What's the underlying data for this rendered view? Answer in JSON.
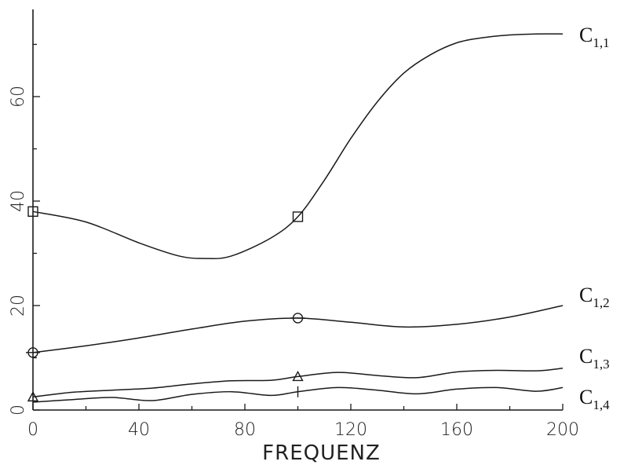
{
  "chart_data": {
    "type": "line",
    "xlabel": "FREQUENZ",
    "ylabel": "",
    "xlim": [
      0,
      200
    ],
    "ylim": [
      0,
      75
    ],
    "xticks": [
      0,
      40,
      80,
      120,
      160,
      200
    ],
    "xtick_labels": [
      "0",
      "40",
      "80",
      "120",
      "160",
      "200"
    ],
    "yticks": [
      0,
      20,
      40,
      60
    ],
    "ytick_labels": [
      "0",
      "20",
      "40",
      "60"
    ],
    "grid": false,
    "legend": "direct labels at right end of each line",
    "series": [
      {
        "name": "C1,1",
        "label_main": "C",
        "label_sub": "1,1",
        "marker": "square",
        "marker_x": [
          0,
          100
        ],
        "x": [
          0,
          20,
          40,
          55,
          65,
          75,
          90,
          100,
          110,
          120,
          130,
          140,
          150,
          160,
          170,
          180,
          190,
          200
        ],
        "y": [
          38,
          36,
          32,
          29.5,
          29,
          29.5,
          33,
          37,
          44,
          52,
          59,
          64.5,
          68,
          70.3,
          71.3,
          71.8,
          72,
          72
        ]
      },
      {
        "name": "C1,2",
        "label_main": "C",
        "label_sub": "1,2",
        "marker": "circle",
        "marker_x": [
          0,
          100
        ],
        "x": [
          0,
          20,
          40,
          60,
          80,
          100,
          120,
          140,
          160,
          180,
          200
        ],
        "y": [
          11,
          12.3,
          13.8,
          15.5,
          17,
          17.6,
          16.8,
          15.9,
          16.4,
          17.8,
          20
        ]
      },
      {
        "name": "C1,3",
        "label_main": "C",
        "label_sub": "1,3",
        "marker": "triangle",
        "marker_x": [
          0,
          100
        ],
        "x": [
          0,
          15,
          30,
          45,
          60,
          75,
          90,
          100,
          115,
          130,
          145,
          160,
          175,
          190,
          200
        ],
        "y": [
          2.5,
          3.4,
          3.8,
          4.2,
          5,
          5.6,
          5.7,
          6.4,
          7.2,
          6.6,
          6.2,
          7.3,
          7.6,
          7.5,
          8
        ]
      },
      {
        "name": "C1,4",
        "label_main": "C",
        "label_sub": "1,4",
        "marker": "plus",
        "marker_x": [
          100
        ],
        "x": [
          0,
          15,
          30,
          45,
          60,
          75,
          90,
          100,
          115,
          130,
          145,
          160,
          175,
          190,
          200
        ],
        "y": [
          1.5,
          2,
          2.4,
          1.8,
          3,
          3.5,
          2.8,
          3.5,
          4.3,
          3.8,
          3.1,
          4,
          4.3,
          3.6,
          4.3
        ]
      }
    ]
  }
}
